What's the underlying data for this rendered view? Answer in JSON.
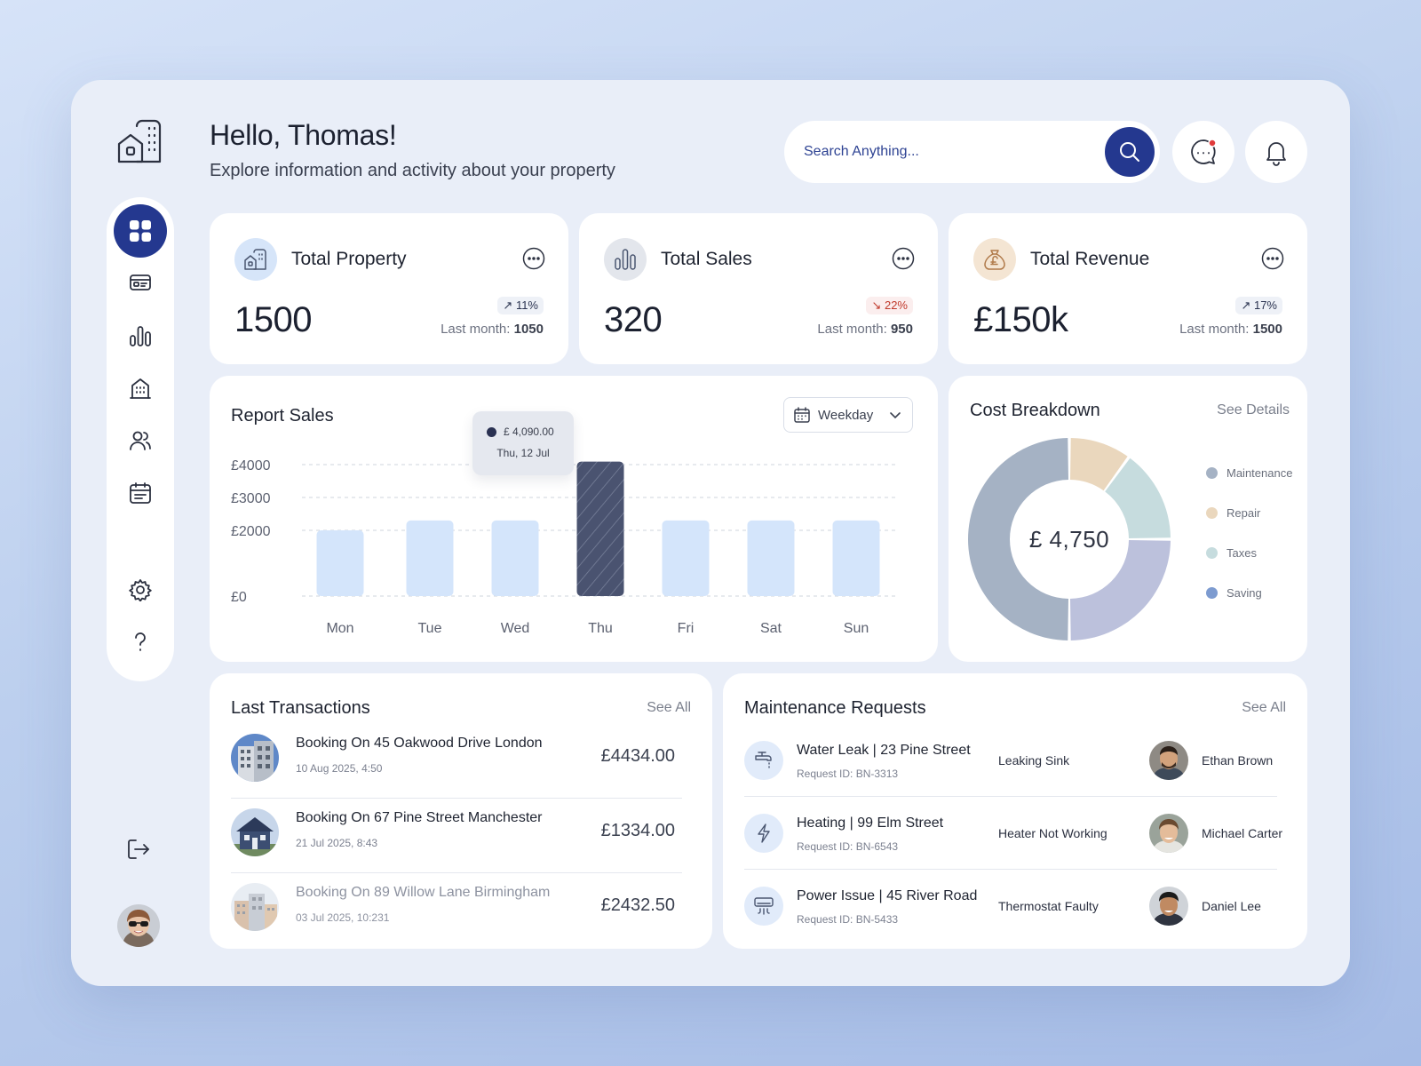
{
  "header": {
    "greeting": "Hello, Thomas!",
    "subtitle": "Explore information and activity about your property"
  },
  "search": {
    "placeholder": "Search Anything..."
  },
  "sidebar": {
    "items": [
      {
        "icon": "dashboard-grid-icon",
        "active": true
      },
      {
        "icon": "id-card-icon"
      },
      {
        "icon": "bar-chart-icon"
      },
      {
        "icon": "building-icon"
      },
      {
        "icon": "users-icon"
      },
      {
        "icon": "calendar-list-icon"
      },
      {
        "icon": "gear-icon"
      },
      {
        "icon": "help-icon"
      }
    ]
  },
  "stats": [
    {
      "title": "Total Property",
      "value": "1500",
      "badge": "11%",
      "trend": "up",
      "last_label": "Last month:",
      "last_value": "1050"
    },
    {
      "title": "Total Sales",
      "value": "320",
      "badge": "22%",
      "trend": "down",
      "last_label": "Last month:",
      "last_value": "950"
    },
    {
      "title": "Total Revenue",
      "value": "£150k",
      "badge": "17%",
      "trend": "up",
      "last_label": "Last month:",
      "last_value": "1500"
    }
  ],
  "report_sales": {
    "title": "Report Sales",
    "filter": "Weekday",
    "tooltip": {
      "value": "£ 4,090.00",
      "date": "Thu, 12 Jul"
    }
  },
  "chart_data": {
    "type": "bar",
    "title": "Report Sales",
    "categories": [
      "Mon",
      "Tue",
      "Wed",
      "Thu",
      "Fri",
      "Sat",
      "Sun"
    ],
    "values": [
      2000,
      2300,
      2300,
      4090,
      2300,
      2300,
      2300
    ],
    "highlight_index": 3,
    "yticks": [
      "£4000",
      "£3000",
      "£2000",
      "£0"
    ],
    "ytick_values": [
      4000,
      3000,
      2000,
      0
    ],
    "ylim": [
      0,
      4000
    ],
    "grid": true,
    "colors": {
      "bar": "#d4e5fb",
      "highlight": "#4a5370"
    }
  },
  "cost_breakdown": {
    "title": "Cost Breakdown",
    "see_details": "See Details",
    "total": "£ 4,750",
    "legend": [
      {
        "label": "Maintenance",
        "color": "#a5b2c4"
      },
      {
        "label": "Repair",
        "color": "#ead7bd"
      },
      {
        "label": "Taxes",
        "color": "#c6dcde"
      },
      {
        "label": "Saving",
        "color": "#bcc1dc"
      }
    ],
    "slices": [
      {
        "label": "Maintenance",
        "value": 50
      },
      {
        "label": "Repair",
        "value": 10
      },
      {
        "label": "Taxes",
        "value": 15
      },
      {
        "label": "Saving",
        "value": 25
      }
    ]
  },
  "transactions": {
    "title": "Last Transactions",
    "see_all": "See All",
    "items": [
      {
        "title": "Booking On 45 Oakwood Drive London",
        "date": "10 Aug 2025, 4:50",
        "amount": "£4434.00"
      },
      {
        "title": "Booking On 67 Pine Street Manchester",
        "date": "21 Jul 2025, 8:43",
        "amount": "£1334.00"
      },
      {
        "title": "Booking On 89 Willow Lane Birmingham",
        "date": "03 Jul 2025, 10:231",
        "amount": "£2432.50"
      }
    ]
  },
  "maintenance": {
    "title": "Maintenance Requests",
    "see_all": "See All",
    "items": [
      {
        "title": "Water Leak | 23 Pine Street",
        "request_id": "Request ID: BN-3313",
        "issue": "Leaking Sink",
        "name": "Ethan Brown",
        "icon": "faucet-icon"
      },
      {
        "title": "Heating | 99 Elm Street",
        "request_id": "Request ID: BN-6543",
        "issue": "Heater Not Working",
        "name": "Michael Carter",
        "icon": "lightning-icon"
      },
      {
        "title": "Power Issue | 45 River Road",
        "request_id": "Request ID: BN-5433",
        "issue": "Thermostat Faulty",
        "name": "Daniel Lee",
        "icon": "air-conditioner-icon"
      }
    ]
  }
}
